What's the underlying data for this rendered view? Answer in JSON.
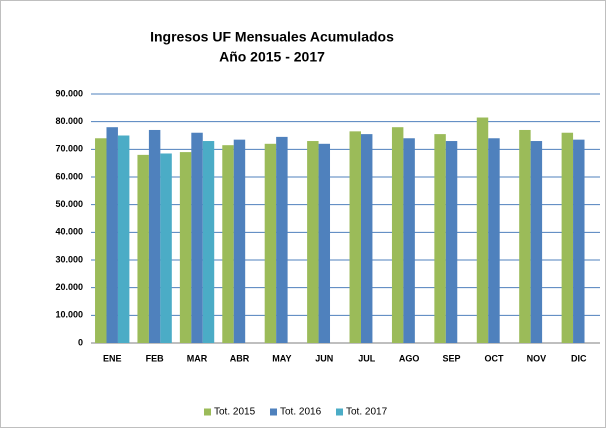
{
  "chart_data": {
    "type": "bar",
    "title": "Ingresos UF Mensuales Acumulados",
    "subtitle": "Año 2015 - 2017",
    "categories": [
      "ENE",
      "FEB",
      "MAR",
      "ABR",
      "MAY",
      "JUN",
      "JUL",
      "AGO",
      "SEP",
      "OCT",
      "NOV",
      "DIC"
    ],
    "series": [
      {
        "name": "Tot. 2015",
        "color": "#9bbb59",
        "values": [
          74000,
          68000,
          69000,
          71500,
          72000,
          73000,
          76500,
          78000,
          75500,
          81500,
          77000,
          76000
        ]
      },
      {
        "name": "Tot. 2016",
        "color": "#4f81bd",
        "values": [
          78000,
          77000,
          76000,
          73500,
          74500,
          72000,
          75500,
          74000,
          73000,
          74000,
          73000,
          73500
        ]
      },
      {
        "name": "Tot. 2017",
        "color": "#4bacc6",
        "values": [
          75000,
          68500,
          73000,
          null,
          null,
          null,
          null,
          null,
          null,
          null,
          null,
          null
        ]
      }
    ],
    "ylim": [
      0,
      90000
    ],
    "yticks": [
      0,
      {
        "value": 10000,
        "label": "10.000"
      },
      {
        "value": 20000,
        "label": "20.000"
      },
      {
        "value": 30000,
        "label": "30.000"
      },
      {
        "value": 40000,
        "label": "40.000"
      },
      {
        "value": 50000,
        "label": "50.000"
      },
      {
        "value": 60000,
        "label": "60.000"
      },
      {
        "value": 70000,
        "label": "70.000"
      },
      {
        "value": 80000,
        "label": "80.000"
      },
      {
        "value": 90000,
        "label": "90.000"
      }
    ],
    "grid": true,
    "legend": "bottom"
  }
}
